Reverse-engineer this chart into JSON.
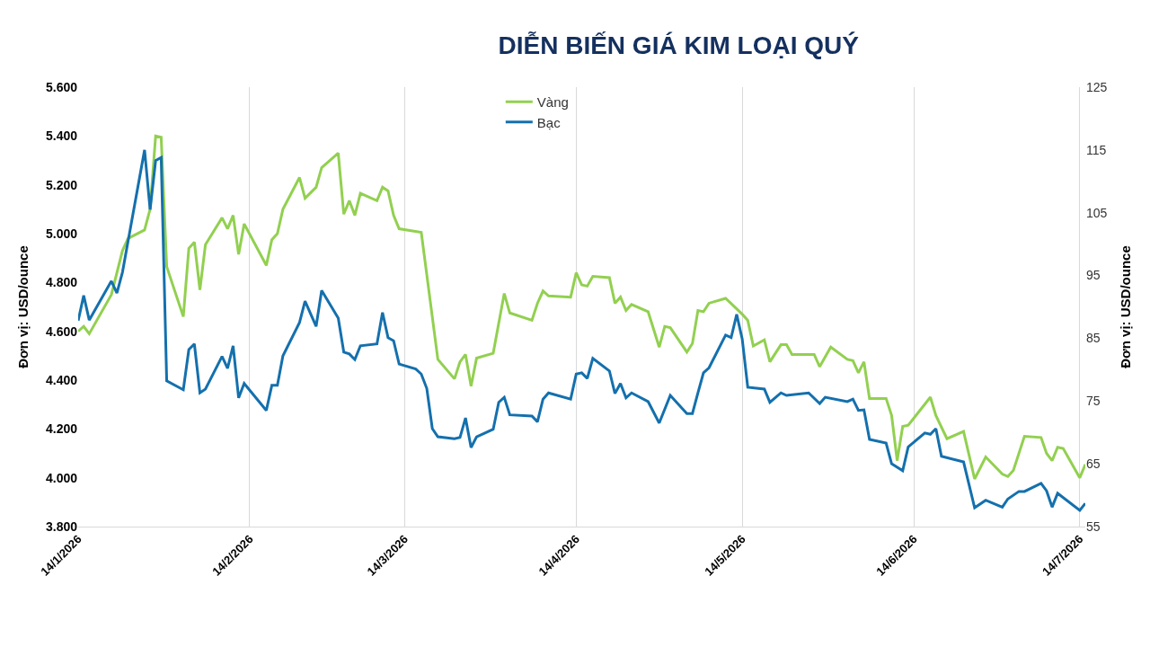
{
  "chart_data": {
    "type": "line",
    "title": "DIỄN BIẾN GIÁ KIM LOẠI QUÝ",
    "ylabel": "Đơn vị: USD/ounce",
    "y2label": "Đơn vị: USD/ounce",
    "xlim": [
      "2026-01-14",
      "2026-07-15"
    ],
    "xticks": [
      {
        "value": "2026-01-14",
        "label": "14/1/2026"
      },
      {
        "value": "2026-02-14",
        "label": "14/2/2026"
      },
      {
        "value": "2026-03-14",
        "label": "14/3/2026"
      },
      {
        "value": "2026-04-14",
        "label": "14/4/2026"
      },
      {
        "value": "2026-05-14",
        "label": "14/5/2026"
      },
      {
        "value": "2026-06-14",
        "label": "14/6/2026"
      },
      {
        "value": "2026-07-14",
        "label": "14/7/2026"
      }
    ],
    "ylim": [
      3800,
      5600
    ],
    "yticks": [
      {
        "value": 3800,
        "label": "3.800"
      },
      {
        "value": 4000,
        "label": "4.000"
      },
      {
        "value": 4200,
        "label": "4.200"
      },
      {
        "value": 4400,
        "label": "4.400"
      },
      {
        "value": 4600,
        "label": "4.600"
      },
      {
        "value": 4800,
        "label": "4.800"
      },
      {
        "value": 5000,
        "label": "5.000"
      },
      {
        "value": 5200,
        "label": "5.200"
      },
      {
        "value": 5400,
        "label": "5.400"
      },
      {
        "value": 5600,
        "label": "5.600"
      }
    ],
    "y2lim": [
      55,
      125
    ],
    "y2ticks": [
      55,
      65,
      75,
      85,
      95,
      105,
      115,
      125
    ],
    "grid": "x",
    "legend": "top",
    "marker": "none",
    "line_style": "solid",
    "series": [
      {
        "name": "Vàng",
        "color": "#92d050",
        "x": [
          "2026-01-14",
          "2026-01-15",
          "2026-01-16",
          "2026-01-20",
          "2026-01-22",
          "2026-01-23",
          "2026-01-26",
          "2026-01-27",
          "2026-01-28",
          "2026-01-29",
          "2026-01-30",
          "2026-02-02",
          "2026-02-03",
          "2026-02-04",
          "2026-02-05",
          "2026-02-06",
          "2026-02-09",
          "2026-02-10",
          "2026-02-11",
          "2026-02-12",
          "2026-02-13",
          "2026-02-17",
          "2026-02-18",
          "2026-02-19",
          "2026-02-20",
          "2026-02-23",
          "2026-02-24",
          "2026-02-26",
          "2026-02-27",
          "2026-03-02",
          "2026-03-03",
          "2026-03-04",
          "2026-03-05",
          "2026-03-06",
          "2026-03-09",
          "2026-03-10",
          "2026-03-11",
          "2026-03-12",
          "2026-03-13",
          "2026-03-17",
          "2026-03-20",
          "2026-03-23",
          "2026-03-24",
          "2026-03-25",
          "2026-03-26",
          "2026-03-27",
          "2026-03-30",
          "2026-04-01",
          "2026-04-02",
          "2026-04-06",
          "2026-04-07",
          "2026-04-08",
          "2026-04-09",
          "2026-04-13",
          "2026-04-14",
          "2026-04-15",
          "2026-04-16",
          "2026-04-17",
          "2026-04-20",
          "2026-04-21",
          "2026-04-22",
          "2026-04-23",
          "2026-04-24",
          "2026-04-27",
          "2026-04-29",
          "2026-04-30",
          "2026-05-01",
          "2026-05-04",
          "2026-05-05",
          "2026-05-06",
          "2026-05-07",
          "2026-05-08",
          "2026-05-11",
          "2026-05-14",
          "2026-05-15",
          "2026-05-16",
          "2026-05-18",
          "2026-05-19",
          "2026-05-21",
          "2026-05-22",
          "2026-05-23",
          "2026-05-27",
          "2026-05-28",
          "2026-05-30",
          "2026-06-02",
          "2026-06-03",
          "2026-06-04",
          "2026-06-05",
          "2026-06-06",
          "2026-06-09",
          "2026-06-10",
          "2026-06-11",
          "2026-06-12",
          "2026-06-13",
          "2026-06-17",
          "2026-06-18",
          "2026-06-20",
          "2026-06-23",
          "2026-06-25",
          "2026-06-27",
          "2026-06-30",
          "2026-07-01",
          "2026-07-02",
          "2026-07-04",
          "2026-07-07",
          "2026-07-08",
          "2026-07-09",
          "2026-07-10",
          "2026-07-11",
          "2026-07-14",
          "2026-07-15"
        ],
        "values": [
          4600,
          4620,
          4590,
          4750,
          4930,
          4980,
          5015,
          5100,
          5400,
          5395,
          4865,
          4660,
          4940,
          4965,
          4770,
          4955,
          5065,
          5020,
          5075,
          4915,
          5040,
          4870,
          4975,
          5000,
          5100,
          5230,
          5145,
          5190,
          5270,
          5330,
          5080,
          5135,
          5075,
          5165,
          5135,
          5190,
          5175,
          5075,
          5020,
          5005,
          4485,
          4405,
          4475,
          4505,
          4375,
          4490,
          4510,
          4755,
          4675,
          4645,
          4715,
          4765,
          4745,
          4740,
          4840,
          4790,
          4785,
          4825,
          4820,
          4715,
          4740,
          4685,
          4710,
          4680,
          4535,
          4620,
          4615,
          4515,
          4550,
          4685,
          4680,
          4715,
          4735,
          4670,
          4645,
          4540,
          4565,
          4475,
          4545,
          4545,
          4505,
          4505,
          4455,
          4535,
          4485,
          4480,
          4430,
          4475,
          4325,
          4325,
          4255,
          4070,
          4210,
          4215,
          4330,
          4255,
          4160,
          4190,
          3995,
          4085,
          4015,
          4005,
          4030,
          4170,
          4165,
          4100,
          4070,
          4125,
          4120,
          4000,
          4055
        ]
      },
      {
        "name": "Bạc",
        "color": "#1470ad",
        "axis": "y2",
        "x": [
          "2026-01-14",
          "2026-01-15",
          "2026-01-16",
          "2026-01-20",
          "2026-01-21",
          "2026-01-22",
          "2026-01-26",
          "2026-01-27",
          "2026-01-28",
          "2026-01-29",
          "2026-01-30",
          "2026-02-02",
          "2026-02-03",
          "2026-02-04",
          "2026-02-05",
          "2026-02-06",
          "2026-02-09",
          "2026-02-10",
          "2026-02-11",
          "2026-02-12",
          "2026-02-13",
          "2026-02-17",
          "2026-02-18",
          "2026-02-19",
          "2026-02-20",
          "2026-02-23",
          "2026-02-24",
          "2026-02-26",
          "2026-02-27",
          "2026-03-02",
          "2026-03-03",
          "2026-03-04",
          "2026-03-05",
          "2026-03-06",
          "2026-03-09",
          "2026-03-10",
          "2026-03-11",
          "2026-03-12",
          "2026-03-13",
          "2026-03-16",
          "2026-03-17",
          "2026-03-18",
          "2026-03-19",
          "2026-03-20",
          "2026-03-23",
          "2026-03-24",
          "2026-03-25",
          "2026-03-26",
          "2026-03-27",
          "2026-03-30",
          "2026-03-31",
          "2026-04-01",
          "2026-04-02",
          "2026-04-06",
          "2026-04-07",
          "2026-04-08",
          "2026-04-09",
          "2026-04-13",
          "2026-04-14",
          "2026-04-15",
          "2026-04-16",
          "2026-04-17",
          "2026-04-20",
          "2026-04-21",
          "2026-04-22",
          "2026-04-23",
          "2026-04-24",
          "2026-04-27",
          "2026-04-29",
          "2026-05-01",
          "2026-05-04",
          "2026-05-05",
          "2026-05-06",
          "2026-05-07",
          "2026-05-08",
          "2026-05-11",
          "2026-05-12",
          "2026-05-13",
          "2026-05-14",
          "2026-05-15",
          "2026-05-18",
          "2026-05-19",
          "2026-05-21",
          "2026-05-22",
          "2026-05-26",
          "2026-05-28",
          "2026-05-29",
          "2026-06-02",
          "2026-06-03",
          "2026-06-04",
          "2026-06-05",
          "2026-06-06",
          "2026-06-09",
          "2026-06-10",
          "2026-06-12",
          "2026-06-13",
          "2026-06-16",
          "2026-06-17",
          "2026-06-18",
          "2026-06-19",
          "2026-06-23",
          "2026-06-25",
          "2026-06-27",
          "2026-06-30",
          "2026-07-01",
          "2026-07-03",
          "2026-07-04",
          "2026-07-07",
          "2026-07-08",
          "2026-07-09",
          "2026-07-10",
          "2026-07-14",
          "2026-07-15"
        ],
        "values": [
          87.8,
          91.8,
          87.9,
          94.1,
          92.2,
          95.5,
          115.0,
          105.5,
          113.3,
          113.8,
          78.2,
          76.8,
          83.2,
          84.1,
          76.3,
          76.9,
          82.1,
          80.2,
          83.8,
          75.5,
          77.8,
          73.5,
          77.5,
          77.5,
          82.2,
          87.5,
          90.9,
          86.9,
          92.6,
          88.2,
          82.8,
          82.5,
          81.6,
          83.8,
          84.1,
          89.1,
          85.1,
          84.6,
          80.9,
          80.1,
          79.3,
          77.0,
          70.6,
          69.3,
          69.0,
          69.2,
          72.3,
          67.6,
          69.3,
          70.5,
          74.8,
          75.6,
          72.8,
          72.6,
          71.7,
          75.3,
          76.3,
          75.3,
          79.3,
          79.5,
          78.6,
          81.8,
          79.8,
          76.2,
          77.8,
          75.5,
          76.3,
          74.9,
          71.5,
          75.9,
          73.0,
          73.0,
          76.3,
          79.5,
          80.3,
          85.5,
          85.1,
          88.8,
          84.9,
          77.2,
          76.9,
          74.8,
          76.3,
          75.9,
          76.3,
          74.6,
          75.6,
          74.9,
          75.3,
          73.5,
          73.6,
          68.9,
          68.3,
          65.0,
          63.9,
          67.7,
          69.9,
          69.7,
          70.6,
          66.2,
          65.3,
          58.0,
          59.2,
          58.1,
          59.4,
          60.6,
          60.6,
          61.9,
          60.7,
          58.1,
          60.3,
          57.6,
          58.7
        ]
      }
    ]
  }
}
